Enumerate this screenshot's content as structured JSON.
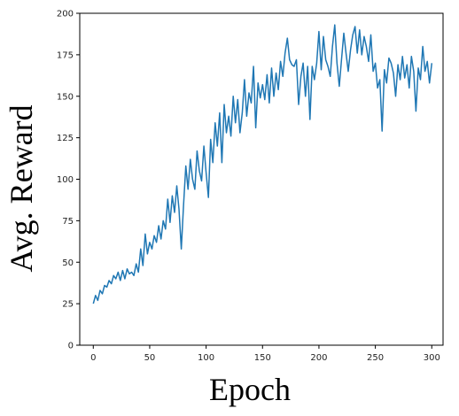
{
  "chart_data": {
    "type": "line",
    "title": "",
    "xlabel": "Epoch",
    "ylabel": "Avg. Reward",
    "xlim": [
      -12,
      310
    ],
    "ylim": [
      0,
      200
    ],
    "xticks": [
      0,
      50,
      100,
      150,
      200,
      250,
      300
    ],
    "yticks": [
      0,
      25,
      50,
      75,
      100,
      125,
      150,
      175,
      200
    ],
    "grid": false,
    "color": "#1f77b4",
    "series": [
      {
        "values": [
          [
            0,
            25
          ],
          [
            2,
            30
          ],
          [
            4,
            27
          ],
          [
            6,
            33
          ],
          [
            8,
            31
          ],
          [
            10,
            36
          ],
          [
            12,
            35
          ],
          [
            14,
            39
          ],
          [
            16,
            37
          ],
          [
            18,
            42
          ],
          [
            20,
            40
          ],
          [
            22,
            44
          ],
          [
            24,
            39
          ],
          [
            26,
            45
          ],
          [
            28,
            40
          ],
          [
            30,
            46
          ],
          [
            32,
            43
          ],
          [
            34,
            44
          ],
          [
            36,
            42
          ],
          [
            38,
            49
          ],
          [
            40,
            44
          ],
          [
            42,
            58
          ],
          [
            44,
            48
          ],
          [
            46,
            67
          ],
          [
            48,
            55
          ],
          [
            50,
            62
          ],
          [
            52,
            58
          ],
          [
            54,
            66
          ],
          [
            56,
            62
          ],
          [
            58,
            72
          ],
          [
            60,
            64
          ],
          [
            62,
            75
          ],
          [
            64,
            70
          ],
          [
            66,
            88
          ],
          [
            68,
            74
          ],
          [
            70,
            90
          ],
          [
            72,
            80
          ],
          [
            74,
            96
          ],
          [
            76,
            82
          ],
          [
            78,
            58
          ],
          [
            80,
            84
          ],
          [
            82,
            108
          ],
          [
            84,
            94
          ],
          [
            86,
            112
          ],
          [
            88,
            100
          ],
          [
            90,
            94
          ],
          [
            92,
            117
          ],
          [
            94,
            105
          ],
          [
            96,
            99
          ],
          [
            98,
            120
          ],
          [
            100,
            104
          ],
          [
            102,
            89
          ],
          [
            104,
            124
          ],
          [
            106,
            110
          ],
          [
            108,
            134
          ],
          [
            110,
            120
          ],
          [
            112,
            140
          ],
          [
            114,
            110
          ],
          [
            116,
            145
          ],
          [
            118,
            128
          ],
          [
            120,
            138
          ],
          [
            122,
            126
          ],
          [
            124,
            150
          ],
          [
            126,
            134
          ],
          [
            128,
            148
          ],
          [
            130,
            128
          ],
          [
            132,
            140
          ],
          [
            134,
            160
          ],
          [
            136,
            138
          ],
          [
            138,
            152
          ],
          [
            140,
            146
          ],
          [
            142,
            168
          ],
          [
            144,
            131
          ],
          [
            146,
            158
          ],
          [
            148,
            149
          ],
          [
            150,
            157
          ],
          [
            152,
            148
          ],
          [
            154,
            163
          ],
          [
            156,
            146
          ],
          [
            158,
            167
          ],
          [
            160,
            150
          ],
          [
            162,
            164
          ],
          [
            164,
            154
          ],
          [
            166,
            171
          ],
          [
            168,
            162
          ],
          [
            170,
            176
          ],
          [
            172,
            185
          ],
          [
            174,
            172
          ],
          [
            176,
            169
          ],
          [
            178,
            168
          ],
          [
            180,
            172
          ],
          [
            182,
            145
          ],
          [
            184,
            162
          ],
          [
            186,
            170
          ],
          [
            188,
            150
          ],
          [
            190,
            168
          ],
          [
            192,
            136
          ],
          [
            194,
            168
          ],
          [
            196,
            160
          ],
          [
            198,
            170
          ],
          [
            200,
            189
          ],
          [
            202,
            166
          ],
          [
            204,
            186
          ],
          [
            206,
            172
          ],
          [
            208,
            168
          ],
          [
            210,
            162
          ],
          [
            212,
            180
          ],
          [
            214,
            193
          ],
          [
            216,
            170
          ],
          [
            218,
            156
          ],
          [
            220,
            172
          ],
          [
            222,
            188
          ],
          [
            224,
            176
          ],
          [
            226,
            165
          ],
          [
            228,
            178
          ],
          [
            230,
            187
          ],
          [
            232,
            192
          ],
          [
            234,
            176
          ],
          [
            236,
            190
          ],
          [
            238,
            175
          ],
          [
            240,
            186
          ],
          [
            242,
            180
          ],
          [
            244,
            171
          ],
          [
            246,
            187
          ],
          [
            248,
            165
          ],
          [
            250,
            170
          ],
          [
            252,
            155
          ],
          [
            254,
            160
          ],
          [
            256,
            129
          ],
          [
            258,
            166
          ],
          [
            260,
            158
          ],
          [
            262,
            173
          ],
          [
            264,
            170
          ],
          [
            266,
            164
          ],
          [
            268,
            150
          ],
          [
            270,
            169
          ],
          [
            272,
            160
          ],
          [
            274,
            174
          ],
          [
            276,
            161
          ],
          [
            278,
            169
          ],
          [
            280,
            155
          ],
          [
            282,
            174
          ],
          [
            284,
            165
          ],
          [
            286,
            141
          ],
          [
            288,
            167
          ],
          [
            290,
            160
          ],
          [
            292,
            180
          ],
          [
            294,
            165
          ],
          [
            296,
            171
          ],
          [
            298,
            158
          ],
          [
            300,
            170
          ]
        ]
      }
    ]
  }
}
